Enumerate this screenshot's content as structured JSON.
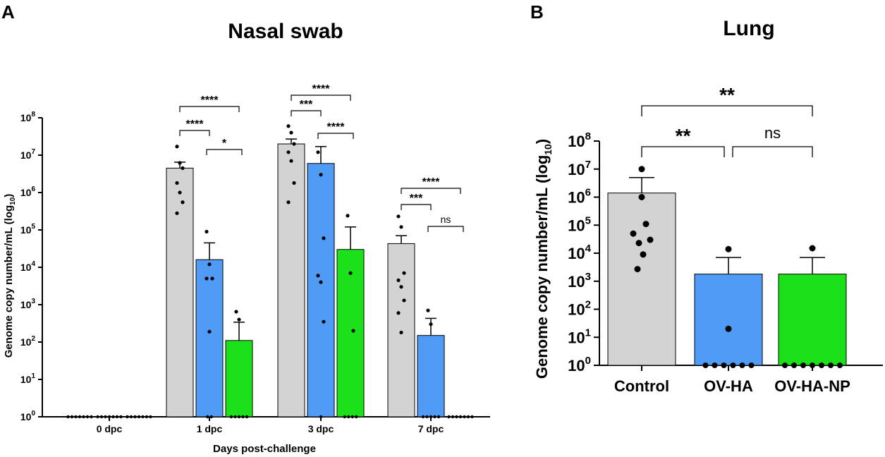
{
  "colors": {
    "control": "#d3d3d3",
    "ov_ha": "#4f9bf5",
    "ov_ha_np": "#1be11b",
    "axis": "#000000"
  },
  "chart_data": [
    {
      "panel_label": "A",
      "type": "bar",
      "title": "Nasal swab",
      "xlabel": "Days post-challenge",
      "ylabel": "Genome copy number/mL (log",
      "ylabel_sub": "10",
      "ylabel_close": ")",
      "y_scale": "log10",
      "ylim": [
        1,
        100000000
      ],
      "y_ticks": [
        {
          "base": "10",
          "exp": "0"
        },
        {
          "base": "10",
          "exp": "1"
        },
        {
          "base": "10",
          "exp": "2"
        },
        {
          "base": "10",
          "exp": "3"
        },
        {
          "base": "10",
          "exp": "4"
        },
        {
          "base": "10",
          "exp": "5"
        },
        {
          "base": "10",
          "exp": "6"
        },
        {
          "base": "10",
          "exp": "7"
        },
        {
          "base": "10",
          "exp": "8"
        }
      ],
      "categories": [
        "0 dpc",
        "1 dpc",
        "3 dpc",
        "7 dpc"
      ],
      "series": [
        {
          "name": "Control",
          "color_key": "control",
          "values": [
            1,
            4500000,
            20000000,
            43000
          ],
          "errors_upper": [
            1,
            6500000,
            27000000,
            70000
          ],
          "points": [
            [
              1,
              1,
              1,
              1,
              1,
              1,
              1
            ],
            [
              17000000,
              6200000,
              4500000,
              1800000,
              1000000,
              550000,
              280000
            ],
            [
              60000000,
              40000000,
              20000000,
              12000000,
              7000000,
              1800000,
              550000
            ],
            [
              230000,
              120000,
              7000,
              4500,
              3000,
              1300,
              600,
              180
            ]
          ]
        },
        {
          "name": "OV-HA",
          "color_key": "ov_ha",
          "values": [
            1,
            16000,
            6000000,
            150
          ],
          "errors_upper": [
            1,
            45000,
            17000000,
            430
          ],
          "points": [
            [
              1,
              1,
              1,
              1,
              1,
              1,
              1
            ],
            [
              90000,
              12000,
              5000,
              5000,
              190,
              1,
              1
            ],
            [
              12000000,
              3000000,
              60000,
              6000,
              4000,
              350,
              1
            ],
            [
              700,
              300,
              1,
              1,
              1,
              1,
              1
            ]
          ]
        },
        {
          "name": "OV-HA-NP",
          "color_key": "ov_ha_np",
          "values": [
            1,
            110,
            30000,
            1
          ],
          "errors_upper": [
            1,
            340,
            120000,
            1
          ],
          "points": [
            [
              1,
              1,
              1,
              1,
              1,
              1,
              1
            ],
            [
              650,
              400,
              1,
              1,
              1,
              1,
              1
            ],
            [
              240000,
              7000,
              200,
              1,
              1,
              1,
              1
            ],
            [
              1,
              1,
              1,
              1,
              1,
              1,
              1
            ]
          ]
        }
      ],
      "annotations": [
        {
          "category": "1 dpc",
          "from": "Control",
          "to": "OV-HA",
          "label": "****",
          "level": 1
        },
        {
          "category": "1 dpc",
          "from": "OV-HA",
          "to": "OV-HA-NP",
          "label": "*",
          "level": 0
        },
        {
          "category": "1 dpc",
          "from": "Control",
          "to": "OV-HA-NP",
          "label": "****",
          "level": 2
        },
        {
          "category": "3 dpc",
          "from": "Control",
          "to": "OV-HA",
          "label": "***",
          "level": 1
        },
        {
          "category": "3 dpc",
          "from": "OV-HA",
          "to": "OV-HA-NP",
          "label": "****",
          "level": 0
        },
        {
          "category": "3 dpc",
          "from": "Control",
          "to": "OV-HA-NP",
          "label": "****",
          "level": 2
        },
        {
          "category": "7 dpc",
          "from": "Control",
          "to": "OV-HA",
          "label": "***",
          "level": 1
        },
        {
          "category": "7 dpc",
          "from": "OV-HA",
          "to": "OV-HA-NP",
          "label": "ns",
          "level": 0
        },
        {
          "category": "7 dpc",
          "from": "Control",
          "to": "OV-HA-NP",
          "label": "****",
          "level": 2
        }
      ]
    },
    {
      "panel_label": "B",
      "type": "bar",
      "title": "Lung",
      "xlabel": "",
      "ylabel": "Genome copy number/mL (log",
      "ylabel_sub": "10",
      "ylabel_close": ")",
      "y_scale": "log10",
      "ylim": [
        1,
        100000000
      ],
      "y_ticks": [
        {
          "base": "10",
          "exp": "0"
        },
        {
          "base": "10",
          "exp": "1"
        },
        {
          "base": "10",
          "exp": "2"
        },
        {
          "base": "10",
          "exp": "3"
        },
        {
          "base": "10",
          "exp": "4"
        },
        {
          "base": "10",
          "exp": "5"
        },
        {
          "base": "10",
          "exp": "6"
        },
        {
          "base": "10",
          "exp": "7"
        },
        {
          "base": "10",
          "exp": "8"
        }
      ],
      "categories": [
        "Control",
        "OV-HA",
        "OV-HA-NP"
      ],
      "values": [
        1400000,
        1800,
        1800
      ],
      "errors_upper": [
        5000000,
        7000,
        7000
      ],
      "color_keys": [
        "control",
        "ov_ha",
        "ov_ha_np"
      ],
      "points": [
        [
          10000000,
          1000000,
          110000,
          50000,
          30000,
          23000,
          9000,
          2700
        ],
        [
          14000,
          20,
          1,
          1,
          1,
          1,
          1,
          1
        ],
        [
          15000,
          1,
          1,
          1,
          1,
          1,
          1,
          1
        ]
      ],
      "annotations": [
        {
          "from": "Control",
          "to": "OV-HA",
          "label": "**",
          "level": 0
        },
        {
          "from": "OV-HA",
          "to": "OV-HA-NP",
          "label": "ns",
          "level": 0
        },
        {
          "from": "Control",
          "to": "OV-HA-NP",
          "label": "**",
          "level": 1
        }
      ]
    }
  ]
}
